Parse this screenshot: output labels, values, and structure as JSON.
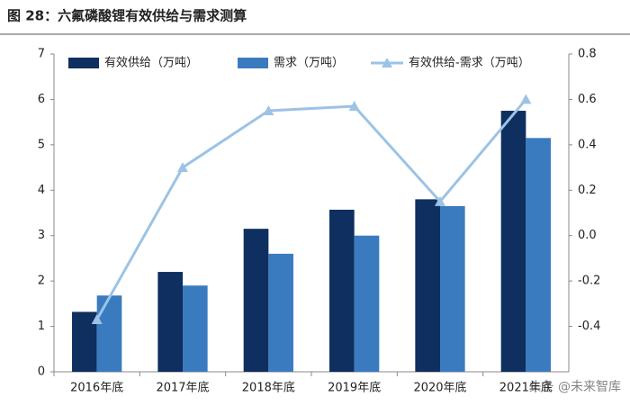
{
  "chart_data": {
    "type": "bar-line",
    "title": "图 28：六氟磷酸锂有效供给与需求测算",
    "categories": [
      "2016年底",
      "2017年底",
      "2018年底",
      "2019年底",
      "2020年底",
      "2021年底"
    ],
    "series": [
      {
        "name": "有效供给（万吨）",
        "color": "#0e2f5f",
        "values": [
          1.32,
          2.2,
          3.15,
          3.57,
          3.8,
          5.75
        ]
      },
      {
        "name": "需求（万吨）",
        "color": "#3a7bbf",
        "values": [
          1.68,
          1.9,
          2.6,
          3.0,
          3.65,
          5.15
        ]
      },
      {
        "name": "有效供给-需求（万吨）",
        "color": "#9cc3e5",
        "axis": "y2",
        "values": [
          -0.37,
          0.3,
          0.55,
          0.57,
          0.15,
          0.6
        ]
      }
    ],
    "ylim": [
      0,
      7
    ],
    "yticks": [
      0,
      1,
      2,
      3,
      4,
      5,
      6,
      7
    ],
    "y2lim": [
      -0.6,
      0.8
    ],
    "y2ticks": [
      -0.4,
      -0.2,
      0.0,
      0.2,
      0.4,
      0.6,
      0.8
    ],
    "watermark": "头条 @未来智库"
  }
}
